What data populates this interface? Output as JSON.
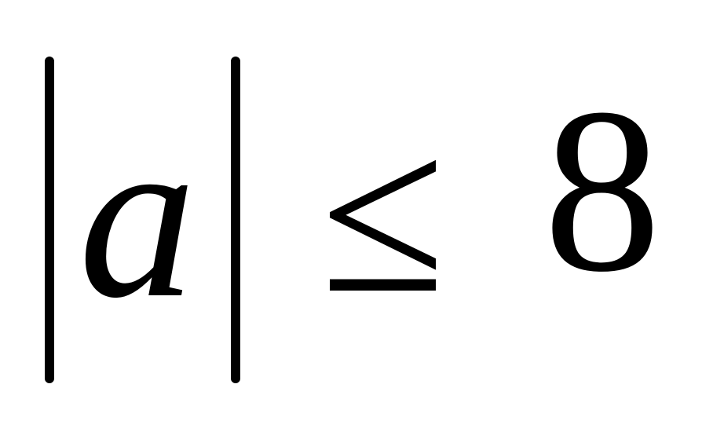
{
  "expression": {
    "variable": "a",
    "relation": "≤",
    "bound": "8"
  },
  "colors": {
    "ink": "#000000",
    "background": "#ffffff"
  }
}
